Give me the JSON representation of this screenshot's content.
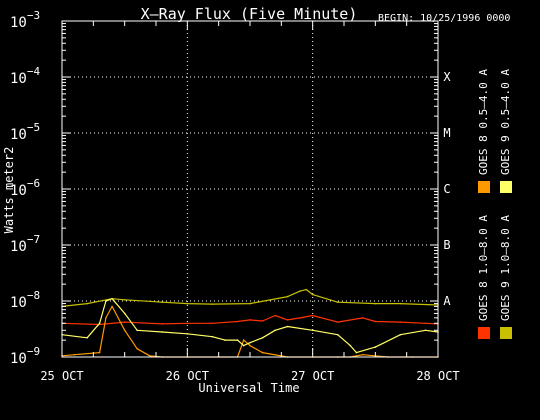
{
  "chart_data": {
    "type": "line",
    "title": "X–Ray Flux (Five Minute)",
    "begin_label": "BEGIN: 10/25/1996 0000",
    "xlabel": "Universal Time",
    "ylabel": "Watts meter2",
    "y_scale": "log",
    "ylim_exp": [
      -9,
      -3
    ],
    "y_ticks": [
      {
        "exp": -9,
        "base": "10",
        "sup": "−9"
      },
      {
        "exp": -8,
        "base": "10",
        "sup": "−8"
      },
      {
        "exp": -7,
        "base": "10",
        "sup": "−7"
      },
      {
        "exp": -6,
        "base": "10",
        "sup": "−6"
      },
      {
        "exp": -5,
        "base": "10",
        "sup": "−5"
      },
      {
        "exp": -4,
        "base": "10",
        "sup": "−4"
      },
      {
        "exp": -3,
        "base": "10",
        "sup": "−3"
      }
    ],
    "xlim_days": [
      0,
      3
    ],
    "x_ticks": [
      {
        "day": 0,
        "label": "25 OCT"
      },
      {
        "day": 1,
        "label": "26 OCT"
      },
      {
        "day": 2,
        "label": "27 OCT"
      },
      {
        "day": 3,
        "label": "28 OCT"
      }
    ],
    "flare_classes": [
      {
        "label": "X",
        "exp": -4
      },
      {
        "label": "M",
        "exp": -5
      },
      {
        "label": "C",
        "exp": -6
      },
      {
        "label": "B",
        "exp": -7
      },
      {
        "label": "A",
        "exp": -8
      }
    ],
    "grid": true,
    "legend_position": "right",
    "series": [
      {
        "name": "GOES 8 1.0–8.0 A",
        "color": "#ff3300",
        "x": [
          0.0,
          0.3,
          0.5,
          0.8,
          1.0,
          1.2,
          1.4,
          1.5,
          1.6,
          1.7,
          1.8,
          1.9,
          2.0,
          2.2,
          2.4,
          2.5,
          2.7,
          2.9,
          3.0
        ],
        "y": [
          4e-09,
          3.8e-09,
          4.2e-09,
          3.9e-09,
          4e-09,
          4e-09,
          4.3e-09,
          4.6e-09,
          4.4e-09,
          5.5e-09,
          4.6e-09,
          5e-09,
          5.5e-09,
          4.2e-09,
          5e-09,
          4.3e-09,
          4.2e-09,
          4e-09,
          3.9e-09
        ]
      },
      {
        "name": "GOES 8 0.5–4.0 A",
        "color": "#ff9900",
        "x": [
          0.0,
          0.1,
          0.3,
          0.35,
          0.4,
          0.5,
          0.6,
          0.7,
          0.8,
          1.0,
          1.4,
          1.45,
          1.5,
          1.6,
          1.8,
          2.0,
          2.2,
          2.3,
          2.4,
          2.6,
          2.8,
          3.0
        ],
        "y": [
          1.05e-09,
          1.1e-09,
          1.2e-09,
          5e-09,
          8e-09,
          3e-09,
          1.4e-09,
          1.05e-09,
          1e-09,
          1e-09,
          1e-09,
          2e-09,
          1.6e-09,
          1.2e-09,
          1e-09,
          1e-09,
          1e-09,
          1e-09,
          1.1e-09,
          1e-09,
          1e-09,
          1e-09
        ]
      },
      {
        "name": "GOES 9 1.0–8.0 A",
        "color": "#c8c000",
        "x": [
          0.0,
          0.2,
          0.4,
          0.5,
          0.8,
          1.0,
          1.2,
          1.5,
          1.8,
          1.9,
          1.95,
          2.0,
          2.2,
          2.5,
          2.7,
          3.0
        ],
        "y": [
          8e-09,
          9e-09,
          1.1e-08,
          1.05e-08,
          9.5e-09,
          9e-09,
          8.8e-09,
          9e-09,
          1.2e-08,
          1.5e-08,
          1.6e-08,
          1.3e-08,
          9.5e-09,
          9e-09,
          9e-09,
          8.5e-09
        ]
      },
      {
        "name": "GOES 9 0.5–4.0 A",
        "color": "#ffff66",
        "x": [
          0.0,
          0.2,
          0.3,
          0.35,
          0.4,
          0.5,
          0.6,
          0.8,
          1.0,
          1.2,
          1.3,
          1.4,
          1.45,
          1.5,
          1.6,
          1.7,
          1.8,
          2.0,
          2.2,
          2.3,
          2.35,
          2.5,
          2.7,
          2.9,
          3.0
        ],
        "y": [
          2.5e-09,
          2.2e-09,
          4e-09,
          1e-08,
          1.1e-08,
          6e-09,
          3e-09,
          2.8e-09,
          2.6e-09,
          2.3e-09,
          2e-09,
          2e-09,
          1.6e-09,
          1.8e-09,
          2.2e-09,
          3e-09,
          3.5e-09,
          3e-09,
          2.5e-09,
          1.6e-09,
          1.2e-09,
          1.5e-09,
          2.5e-09,
          3e-09,
          2.8e-09
        ]
      }
    ]
  }
}
